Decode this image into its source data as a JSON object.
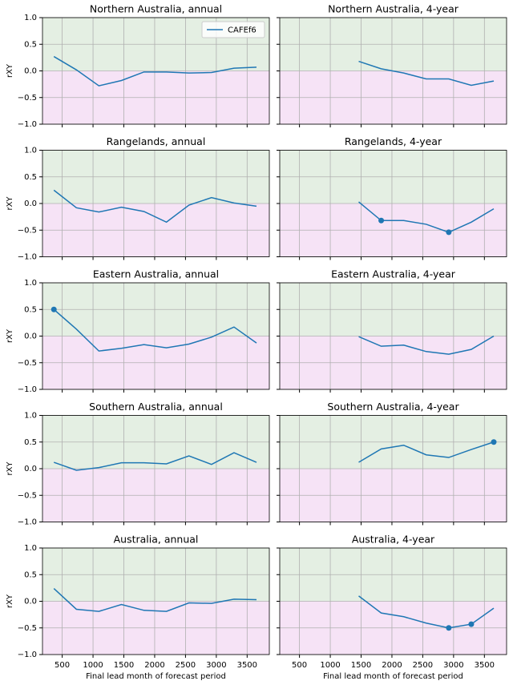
{
  "chart_data": [
    {
      "type": "line",
      "title": "Northern Australia, annual",
      "ylabel": "rXY",
      "legend": "upper right",
      "x": [
        365,
        730,
        1095,
        1461,
        1826,
        2191,
        2556,
        2922,
        3287,
        3652
      ],
      "series": [
        {
          "name": "CAFEf6",
          "color": "#1f77b4",
          "values": [
            0.27,
            0.02,
            -0.28,
            -0.18,
            -0.02,
            -0.02,
            -0.04,
            -0.03,
            0.05,
            0.07
          ],
          "markers": [
            false,
            false,
            false,
            false,
            false,
            false,
            false,
            false,
            false,
            false
          ]
        }
      ],
      "xlim": [
        180,
        3860
      ],
      "ylim": [
        -1,
        1
      ],
      "xticks": [
        500,
        1000,
        1500,
        2000,
        2500,
        3000,
        3500
      ],
      "yticks": [
        {
          "value": -1,
          "label": "−1.0"
        },
        {
          "value": -0.5,
          "label": "−0.5"
        },
        {
          "value": 0,
          "label": "0.0"
        },
        {
          "value": 0.5,
          "label": "0.5"
        },
        {
          "value": 1,
          "label": "1.0"
        }
      ],
      "grid": true,
      "bands": {
        "positive": "#e4efe3",
        "negative": "#f6e3f6"
      }
    },
    {
      "type": "line",
      "title": "Northern Australia, 4-year",
      "x": [
        1461,
        1826,
        2191,
        2556,
        2922,
        3287,
        3652
      ],
      "series": [
        {
          "color": "#1f77b4",
          "values": [
            0.18,
            0.04,
            -0.04,
            -0.15,
            -0.15,
            -0.27,
            -0.19
          ],
          "markers": [
            false,
            false,
            false,
            false,
            false,
            false,
            false
          ]
        }
      ],
      "xlim": [
        180,
        3860
      ],
      "ylim": [
        -1,
        1
      ],
      "xticks": [
        500,
        1000,
        1500,
        2000,
        2500,
        3000,
        3500
      ],
      "yticks": [
        -1,
        -0.5,
        0,
        0.5,
        1
      ],
      "grid": true,
      "bands": {
        "positive": "#e4efe3",
        "negative": "#f6e3f6"
      }
    },
    {
      "type": "line",
      "title": "Rangelands, annual",
      "ylabel": "rXY",
      "x": [
        365,
        730,
        1095,
        1461,
        1826,
        2191,
        2556,
        2922,
        3287,
        3652
      ],
      "series": [
        {
          "color": "#1f77b4",
          "values": [
            0.25,
            -0.08,
            -0.16,
            -0.07,
            -0.15,
            -0.35,
            -0.03,
            0.11,
            0.01,
            -0.05
          ],
          "markers": [
            false,
            false,
            false,
            false,
            false,
            false,
            false,
            false,
            false,
            false
          ]
        }
      ],
      "xlim": [
        180,
        3860
      ],
      "ylim": [
        -1,
        1
      ],
      "xticks": [
        500,
        1000,
        1500,
        2000,
        2500,
        3000,
        3500
      ],
      "yticks": [
        {
          "value": -1,
          "label": "−1.0"
        },
        {
          "value": -0.5,
          "label": "−0.5"
        },
        {
          "value": 0,
          "label": "0.0"
        },
        {
          "value": 0.5,
          "label": "0.5"
        },
        {
          "value": 1,
          "label": "1.0"
        }
      ],
      "grid": true,
      "bands": {
        "positive": "#e4efe3",
        "negative": "#f6e3f6"
      }
    },
    {
      "type": "line",
      "title": "Rangelands, 4-year",
      "x": [
        1461,
        1826,
        2191,
        2556,
        2922,
        3287,
        3652
      ],
      "series": [
        {
          "color": "#1f77b4",
          "values": [
            0.03,
            -0.32,
            -0.32,
            -0.39,
            -0.54,
            -0.35,
            -0.1
          ],
          "markers": [
            false,
            true,
            false,
            false,
            true,
            false,
            false
          ]
        }
      ],
      "xlim": [
        180,
        3860
      ],
      "ylim": [
        -1,
        1
      ],
      "xticks": [
        500,
        1000,
        1500,
        2000,
        2500,
        3000,
        3500
      ],
      "yticks": [
        -1,
        -0.5,
        0,
        0.5,
        1
      ],
      "grid": true,
      "bands": {
        "positive": "#e4efe3",
        "negative": "#f6e3f6"
      }
    },
    {
      "type": "line",
      "title": "Eastern Australia, annual",
      "ylabel": "rXY",
      "x": [
        365,
        730,
        1095,
        1461,
        1826,
        2191,
        2556,
        2922,
        3287,
        3652
      ],
      "series": [
        {
          "color": "#1f77b4",
          "values": [
            0.5,
            0.13,
            -0.28,
            -0.23,
            -0.16,
            -0.22,
            -0.15,
            -0.02,
            0.17,
            -0.13
          ],
          "markers": [
            true,
            false,
            false,
            false,
            false,
            false,
            false,
            false,
            false,
            false
          ]
        }
      ],
      "xlim": [
        180,
        3860
      ],
      "ylim": [
        -1,
        1
      ],
      "xticks": [
        500,
        1000,
        1500,
        2000,
        2500,
        3000,
        3500
      ],
      "yticks": [
        {
          "value": -1,
          "label": "−1.0"
        },
        {
          "value": -0.5,
          "label": "−0.5"
        },
        {
          "value": 0,
          "label": "0.0"
        },
        {
          "value": 0.5,
          "label": "0.5"
        },
        {
          "value": 1,
          "label": "1.0"
        }
      ],
      "grid": true,
      "bands": {
        "positive": "#e4efe3",
        "negative": "#f6e3f6"
      }
    },
    {
      "type": "line",
      "title": "Eastern Australia, 4-year",
      "x": [
        1461,
        1826,
        2191,
        2556,
        2922,
        3287,
        3652
      ],
      "series": [
        {
          "color": "#1f77b4",
          "values": [
            -0.01,
            -0.19,
            -0.17,
            -0.29,
            -0.34,
            -0.25,
            0.0
          ],
          "markers": [
            false,
            false,
            false,
            false,
            false,
            false,
            false
          ]
        }
      ],
      "xlim": [
        180,
        3860
      ],
      "ylim": [
        -1,
        1
      ],
      "xticks": [
        500,
        1000,
        1500,
        2000,
        2500,
        3000,
        3500
      ],
      "yticks": [
        -1,
        -0.5,
        0,
        0.5,
        1
      ],
      "grid": true,
      "bands": {
        "positive": "#e4efe3",
        "negative": "#f6e3f6"
      }
    },
    {
      "type": "line",
      "title": "Southern Australia, annual",
      "ylabel": "rXY",
      "x": [
        365,
        730,
        1095,
        1461,
        1826,
        2191,
        2556,
        2922,
        3287,
        3652
      ],
      "series": [
        {
          "color": "#1f77b4",
          "values": [
            0.12,
            -0.03,
            0.02,
            0.11,
            0.11,
            0.09,
            0.24,
            0.08,
            0.3,
            0.12
          ],
          "markers": [
            false,
            false,
            false,
            false,
            false,
            false,
            false,
            false,
            false,
            false
          ]
        }
      ],
      "xlim": [
        180,
        3860
      ],
      "ylim": [
        -1,
        1
      ],
      "xticks": [
        500,
        1000,
        1500,
        2000,
        2500,
        3000,
        3500
      ],
      "yticks": [
        {
          "value": -1,
          "label": "−1.0"
        },
        {
          "value": -0.5,
          "label": "−0.5"
        },
        {
          "value": 0,
          "label": "0.0"
        },
        {
          "value": 0.5,
          "label": "0.5"
        },
        {
          "value": 1,
          "label": "1.0"
        }
      ],
      "grid": true,
      "bands": {
        "positive": "#e4efe3",
        "negative": "#f6e3f6"
      }
    },
    {
      "type": "line",
      "title": "Southern Australia, 4-year",
      "x": [
        1461,
        1826,
        2191,
        2556,
        2922,
        3287,
        3652
      ],
      "series": [
        {
          "color": "#1f77b4",
          "values": [
            0.12,
            0.37,
            0.44,
            0.26,
            0.21,
            0.36,
            0.5
          ],
          "markers": [
            false,
            false,
            false,
            false,
            false,
            false,
            true
          ]
        }
      ],
      "xlim": [
        180,
        3860
      ],
      "ylim": [
        -1,
        1
      ],
      "xticks": [
        500,
        1000,
        1500,
        2000,
        2500,
        3000,
        3500
      ],
      "yticks": [
        -1,
        -0.5,
        0,
        0.5,
        1
      ],
      "grid": true,
      "bands": {
        "positive": "#e4efe3",
        "negative": "#f6e3f6"
      }
    },
    {
      "type": "line",
      "title": "Australia, annual",
      "ylabel": "rXY",
      "xlabel": "Final lead month of forecast period",
      "x": [
        365,
        730,
        1095,
        1461,
        1826,
        2191,
        2556,
        2922,
        3287,
        3652
      ],
      "series": [
        {
          "color": "#1f77b4",
          "values": [
            0.24,
            -0.15,
            -0.19,
            -0.06,
            -0.17,
            -0.19,
            -0.03,
            -0.04,
            0.04,
            0.03
          ],
          "markers": [
            false,
            false,
            false,
            false,
            false,
            false,
            false,
            false,
            false,
            false
          ]
        }
      ],
      "xlim": [
        180,
        3860
      ],
      "ylim": [
        -1,
        1
      ],
      "xticks": [
        500,
        1000,
        1500,
        2000,
        2500,
        3000,
        3500
      ],
      "yticks": [
        {
          "value": -1,
          "label": "−1.0"
        },
        {
          "value": -0.5,
          "label": "−0.5"
        },
        {
          "value": 0,
          "label": "0.0"
        },
        {
          "value": 0.5,
          "label": "0.5"
        },
        {
          "value": 1,
          "label": "1.0"
        }
      ],
      "grid": true,
      "bands": {
        "positive": "#e4efe3",
        "negative": "#f6e3f6"
      }
    },
    {
      "type": "line",
      "title": "Australia, 4-year",
      "xlabel": "Final lead month of forecast period",
      "x": [
        1461,
        1826,
        2191,
        2556,
        2922,
        3287,
        3652
      ],
      "series": [
        {
          "color": "#1f77b4",
          "values": [
            0.1,
            -0.22,
            -0.29,
            -0.41,
            -0.5,
            -0.43,
            -0.13
          ],
          "markers": [
            false,
            false,
            false,
            false,
            true,
            true,
            false
          ]
        }
      ],
      "xlim": [
        180,
        3860
      ],
      "ylim": [
        -1,
        1
      ],
      "xticks": [
        500,
        1000,
        1500,
        2000,
        2500,
        3000,
        3500
      ],
      "yticks": [
        -1,
        -0.5,
        0,
        0.5,
        1
      ],
      "grid": true,
      "bands": {
        "positive": "#e4efe3",
        "negative": "#f6e3f6"
      }
    }
  ]
}
